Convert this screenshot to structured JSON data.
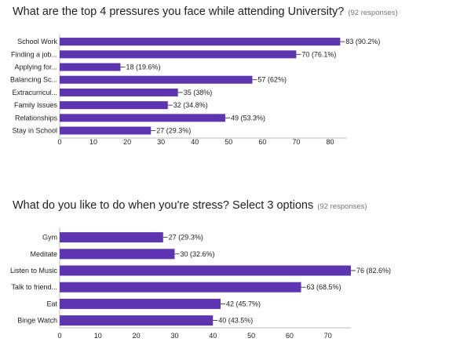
{
  "colors": {
    "bar": "#5e35b1",
    "axis": "#bdbdbd",
    "text": "#212121",
    "muted": "#757575"
  },
  "chart_data": [
    {
      "type": "bar",
      "orientation": "horizontal",
      "title": "What are the top 4 pressures you face while attending University?",
      "responses": "(92 responses)",
      "categories": [
        "School Work",
        "Finding a job...",
        "Applying for...",
        "Balancing Sc...",
        "Extracurricul...",
        "Family Issues",
        "Relationships",
        "Stay in School"
      ],
      "values": [
        83,
        70,
        18,
        57,
        35,
        32,
        49,
        27
      ],
      "labels": [
        "83 (90.2%)",
        "70 (76.1%)",
        "18 (19.6%)",
        "57 (62%)",
        "35 (38%)",
        "32 (34.8%)",
        "49 (53.3%)",
        "27 (29.3%)"
      ],
      "xticks": [
        0,
        10,
        20,
        30,
        40,
        50,
        60,
        70,
        80
      ],
      "xlim": [
        0,
        85
      ]
    },
    {
      "type": "bar",
      "orientation": "horizontal",
      "title": "What do you like to do when you're stress? Select 3 options",
      "responses": "(92 responses)",
      "categories": [
        "Gym",
        "Meditate",
        "Listen to Music",
        "Talk to friend...",
        "Eat",
        "Binge Watch"
      ],
      "values": [
        27,
        30,
        76,
        63,
        42,
        40
      ],
      "labels": [
        "27 (29.3%)",
        "30 (32.6%)",
        "76 (82.6%)",
        "63 (68.5%)",
        "42 (45.7%)",
        "40 (43.5%)"
      ],
      "xticks": [
        0,
        10,
        20,
        30,
        40,
        50,
        60,
        70
      ],
      "xlim": [
        0,
        76
      ]
    }
  ]
}
